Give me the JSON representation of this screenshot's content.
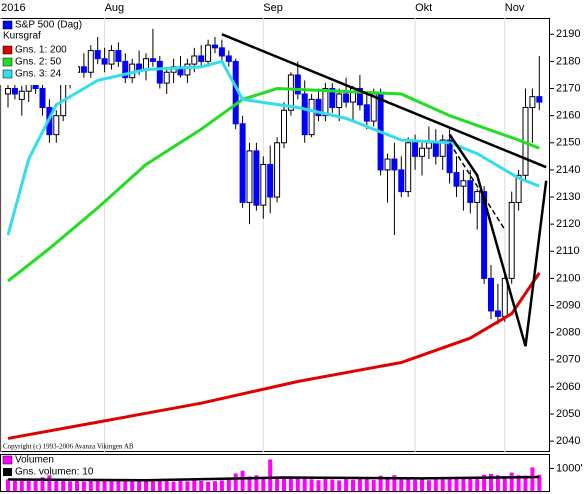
{
  "chart_data": {
    "type": "candlestick",
    "legend_title": "Kursgraf",
    "copyright": "Copyright (c) 1993-2006 Avanza Vikingen AB",
    "name": "S&P 500 (Dag)",
    "up_color": "#ffffff",
    "down_color": "#0000ff",
    "open": [
      2168,
      2170,
      2166,
      2169,
      2174,
      2170,
      2163,
      2153,
      2160,
      2173,
      2176,
      2178,
      2176,
      2184,
      2181,
      2179,
      2184,
      2180,
      2174,
      2179,
      2177,
      2181,
      2180,
      2172,
      2176,
      2178,
      2175,
      2179,
      2182,
      2180,
      2186,
      2185,
      2182,
      2180,
      2157,
      2128,
      2147,
      2127,
      2142,
      2130,
      2150,
      2162,
      2175,
      2168,
      2153,
      2166,
      2160,
      2170,
      2163,
      2168,
      2165,
      2170,
      2164,
      2158,
      2168,
      2140,
      2144,
      2140,
      2132,
      2150,
      2145,
      2148,
      2150,
      2145,
      2151,
      2139,
      2134,
      2136,
      2128,
      2132,
      2100,
      2088,
      2086,
      2100,
      2128,
      2138,
      2163,
      2167
    ],
    "high": [
      2172,
      2175,
      2171,
      2178,
      2177,
      2174,
      2166,
      2162,
      2175,
      2180,
      2181,
      2183,
      2186,
      2189,
      2185,
      2186,
      2187,
      2183,
      2181,
      2184,
      2183,
      2192,
      2182,
      2178,
      2181,
      2182,
      2181,
      2185,
      2186,
      2188,
      2189,
      2188,
      2184,
      2181,
      2160,
      2150,
      2150,
      2145,
      2149,
      2152,
      2165,
      2176,
      2180,
      2173,
      2168,
      2170,
      2172,
      2172,
      2170,
      2174,
      2171,
      2175,
      2168,
      2170,
      2170,
      2146,
      2150,
      2145,
      2152,
      2153,
      2150,
      2156,
      2155,
      2153,
      2155,
      2145,
      2140,
      2140,
      2133,
      2134,
      2105,
      2098,
      2102,
      2132,
      2140,
      2170,
      2170,
      2182
    ],
    "low": [
      2163,
      2166,
      2160,
      2165,
      2168,
      2160,
      2150,
      2150,
      2158,
      2170,
      2172,
      2174,
      2174,
      2179,
      2176,
      2177,
      2178,
      2172,
      2172,
      2175,
      2173,
      2178,
      2170,
      2168,
      2172,
      2174,
      2172,
      2176,
      2178,
      2178,
      2183,
      2180,
      2178,
      2155,
      2126,
      2120,
      2125,
      2122,
      2124,
      2128,
      2148,
      2160,
      2166,
      2150,
      2152,
      2158,
      2158,
      2161,
      2158,
      2163,
      2158,
      2162,
      2155,
      2156,
      2138,
      2128,
      2116,
      2130,
      2130,
      2140,
      2138,
      2144,
      2142,
      2140,
      2135,
      2130,
      2125,
      2124,
      2118,
      2098,
      2085,
      2083,
      2084,
      2098,
      2125,
      2136,
      2150,
      2162
    ],
    "close": [
      2170,
      2168,
      2169,
      2175,
      2170,
      2163,
      2153,
      2160,
      2173,
      2176,
      2178,
      2176,
      2184,
      2181,
      2179,
      2184,
      2180,
      2174,
      2179,
      2177,
      2181,
      2180,
      2172,
      2176,
      2178,
      2175,
      2179,
      2182,
      2180,
      2186,
      2185,
      2182,
      2180,
      2157,
      2128,
      2147,
      2127,
      2142,
      2130,
      2150,
      2162,
      2175,
      2168,
      2153,
      2166,
      2160,
      2170,
      2163,
      2168,
      2165,
      2170,
      2164,
      2158,
      2168,
      2140,
      2144,
      2140,
      2132,
      2150,
      2145,
      2148,
      2150,
      2145,
      2151,
      2139,
      2134,
      2136,
      2128,
      2132,
      2100,
      2088,
      2086,
      2100,
      2128,
      2138,
      2163,
      2167,
      2165
    ],
    "series": [
      {
        "name": "Gns. 1: 200",
        "color": "#e00000",
        "x": [
          0,
          13,
          28,
          42,
          57,
          67,
          73,
          77
        ],
        "values": [
          2041,
          2047,
          2054,
          2062,
          2069,
          2078,
          2087,
          2102
        ]
      },
      {
        "name": "Gns. 2: 50",
        "color": "#22dd22",
        "x": [
          0,
          6,
          13,
          20,
          28,
          34,
          39,
          57,
          64,
          74,
          77
        ],
        "values": [
          2099,
          2111,
          2126,
          2142,
          2155,
          2166,
          2170,
          2168,
          2160,
          2151,
          2148
        ]
      },
      {
        "name": "Gns. 3: 24",
        "color": "#33ddee",
        "x": [
          0,
          3,
          7,
          13,
          20,
          28,
          31,
          34,
          42,
          49,
          57,
          64,
          68,
          74,
          77
        ],
        "values": [
          2116,
          2144,
          2164,
          2173,
          2177,
          2178,
          2180,
          2166,
          2163,
          2159,
          2151,
          2150,
          2146,
          2137,
          2134
        ]
      }
    ],
    "trend_lines": [
      {
        "x": [
          31,
          78
        ],
        "values": [
          2190,
          2141
        ]
      },
      {
        "x": [
          64,
          68,
          75,
          78
        ],
        "values": [
          2153,
          2138,
          2075,
          2136
        ]
      },
      {
        "x": [
          64,
          72
        ],
        "values": [
          2150,
          2118
        ]
      }
    ],
    "xticks": [
      {
        "value": -1,
        "label": "2016"
      },
      {
        "value": 14,
        "label": "Aug"
      },
      {
        "value": 37,
        "label": "Sep"
      },
      {
        "value": 59,
        "label": "Okt"
      },
      {
        "value": 72,
        "label": "Nov"
      }
    ],
    "ylim": [
      2036,
      2196
    ],
    "yticks": [
      2040,
      2050,
      2060,
      2070,
      2080,
      2090,
      2100,
      2110,
      2120,
      2130,
      2140,
      2150,
      2160,
      2170,
      2180,
      2190
    ],
    "volume": {
      "name": "Volumen",
      "color": "#ff00ff",
      "values": [
        520,
        480,
        560,
        450,
        500,
        610,
        700,
        540,
        480,
        430,
        460,
        420,
        500,
        440,
        470,
        520,
        460,
        540,
        480,
        450,
        500,
        470,
        530,
        440,
        420,
        460,
        430,
        480,
        450,
        410,
        440,
        470,
        520,
        780,
        900,
        650,
        700,
        600,
        1400,
        620,
        560,
        540,
        590,
        650,
        520,
        480,
        560,
        510,
        470,
        530,
        500,
        540,
        560,
        490,
        680,
        620,
        700,
        580,
        540,
        500,
        520,
        480,
        510,
        530,
        560,
        590,
        620,
        600,
        640,
        720,
        760,
        700,
        650,
        820,
        700,
        680,
        1050,
        720
      ],
      "average": {
        "name": "Gns. volumen: 10",
        "color": "#000000",
        "x": [
          0,
          20,
          40,
          60,
          77
        ],
        "values": [
          510,
          480,
          600,
          560,
          620
        ]
      },
      "ylim": [
        0,
        1600
      ],
      "yticks": [
        {
          "value": 1000,
          "label": "1000'"
        }
      ]
    }
  }
}
